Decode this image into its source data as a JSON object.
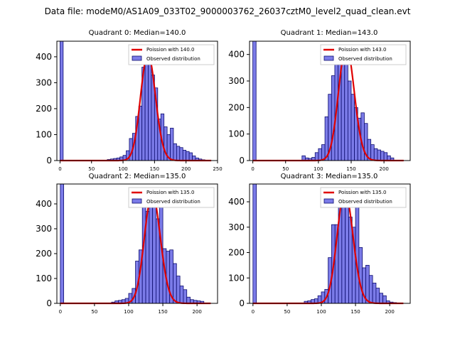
{
  "figure": {
    "suptitle": "Data file: modeM0/AS1A09_033T02_9000003762_26037cztM0_level2_quad_clean.evt"
  },
  "colors": {
    "bar_fill": "#7b7be8",
    "bar_edge": "#0c0c6e",
    "line": "#e00000",
    "axis": "#000000"
  },
  "chart_data": [
    {
      "type": "bar",
      "title": "Quadrant 0: Median=140.0",
      "median": 140.0,
      "xlim": [
        -5,
        250
      ],
      "ylim": [
        0,
        460
      ],
      "xticks": [
        0,
        50,
        100,
        150,
        200,
        250
      ],
      "yticks": [
        0,
        100,
        200,
        300,
        400
      ],
      "bin_width": 5,
      "bin_starts": [
        0,
        75,
        80,
        85,
        90,
        95,
        100,
        105,
        110,
        115,
        120,
        125,
        130,
        135,
        140,
        145,
        150,
        155,
        160,
        165,
        170,
        175,
        180,
        185,
        190,
        195,
        200,
        205,
        210,
        215,
        220,
        225
      ],
      "values": [
        460,
        4,
        6,
        8,
        10,
        14,
        20,
        38,
        85,
        105,
        170,
        210,
        360,
        410,
        370,
        330,
        280,
        160,
        180,
        130,
        100,
        125,
        65,
        55,
        50,
        40,
        35,
        30,
        18,
        10,
        6,
        3
      ],
      "legend": [
        "Poission with 140.0",
        "Observed distribution"
      ]
    },
    {
      "type": "bar",
      "title": "Quadrant 1: Median=143.0",
      "median": 143.0,
      "xlim": [
        -5,
        240
      ],
      "ylim": [
        0,
        450
      ],
      "xticks": [
        0,
        50,
        100,
        150,
        200
      ],
      "yticks": [
        0,
        100,
        200,
        300,
        400
      ],
      "bin_width": 5,
      "bin_starts": [
        0,
        75,
        80,
        85,
        90,
        95,
        100,
        105,
        110,
        115,
        120,
        125,
        130,
        135,
        140,
        145,
        150,
        155,
        160,
        165,
        170,
        175,
        180,
        185,
        190,
        195,
        200,
        205,
        210
      ],
      "values": [
        450,
        18,
        10,
        8,
        12,
        30,
        45,
        60,
        165,
        250,
        320,
        380,
        430,
        410,
        390,
        300,
        250,
        200,
        160,
        180,
        140,
        80,
        60,
        45,
        40,
        35,
        30,
        18,
        10
      ],
      "legend": [
        "Poission with 143.0",
        "Observed distribution"
      ]
    },
    {
      "type": "bar",
      "title": "Quadrant 2: Median=135.0",
      "median": 135.0,
      "xlim": [
        -5,
        230
      ],
      "ylim": [
        0,
        480
      ],
      "xticks": [
        0,
        50,
        100,
        150,
        200
      ],
      "yticks": [
        0,
        100,
        200,
        300,
        400
      ],
      "bin_width": 5,
      "bin_starts": [
        0,
        75,
        80,
        85,
        90,
        95,
        100,
        105,
        110,
        115,
        120,
        125,
        130,
        135,
        140,
        145,
        150,
        155,
        160,
        165,
        170,
        175,
        180,
        185,
        190,
        195,
        200,
        205
      ],
      "values": [
        480,
        5,
        10,
        12,
        15,
        20,
        40,
        60,
        170,
        215,
        420,
        370,
        440,
        400,
        340,
        420,
        220,
        210,
        215,
        160,
        110,
        70,
        55,
        25,
        15,
        12,
        10,
        8
      ],
      "legend": [
        "Poission with 135.0",
        "Observed distribution"
      ]
    },
    {
      "type": "bar",
      "title": "Quadrant 3: Median=135.0",
      "median": 135.0,
      "xlim": [
        -5,
        230
      ],
      "ylim": [
        0,
        470
      ],
      "xticks": [
        0,
        50,
        100,
        150,
        200
      ],
      "yticks": [
        0,
        100,
        200,
        300,
        400
      ],
      "bin_width": 5,
      "bin_starts": [
        0,
        75,
        80,
        85,
        90,
        95,
        100,
        105,
        110,
        115,
        120,
        125,
        130,
        135,
        140,
        145,
        150,
        155,
        160,
        165,
        170,
        175,
        180,
        185,
        190,
        195,
        200,
        205
      ],
      "values": [
        470,
        8,
        10,
        15,
        18,
        30,
        45,
        55,
        180,
        310,
        310,
        440,
        380,
        440,
        340,
        300,
        400,
        220,
        140,
        150,
        110,
        80,
        60,
        40,
        30,
        10,
        5,
        3
      ],
      "legend": [
        "Poission with 135.0",
        "Observed distribution"
      ]
    }
  ]
}
